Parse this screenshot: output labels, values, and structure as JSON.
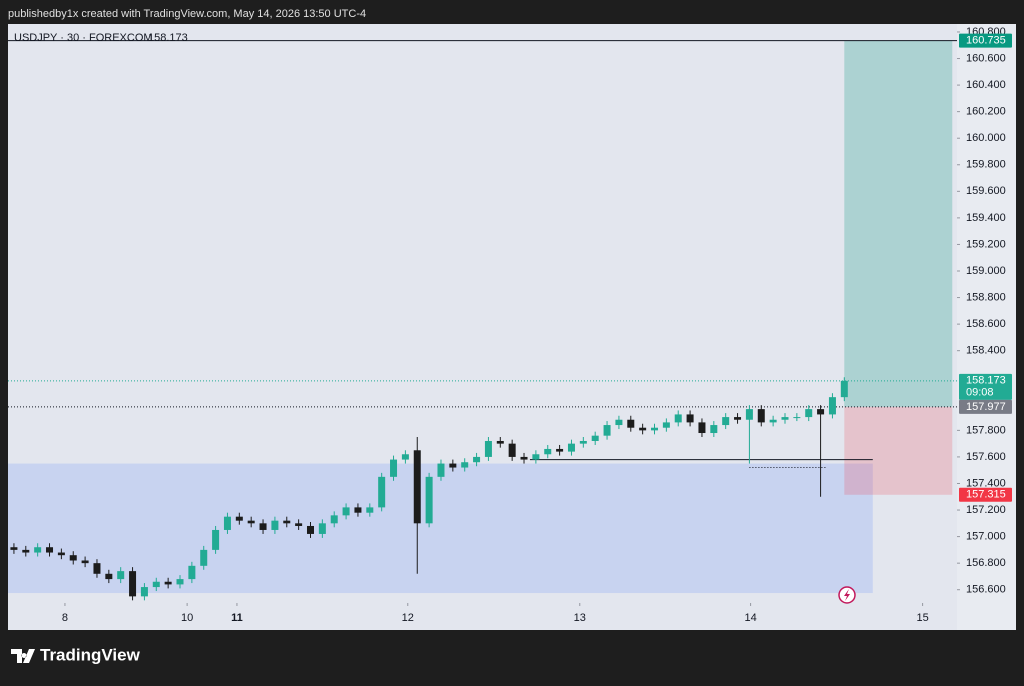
{
  "header": "publishedby1x created with TradingView.com, May 14, 2026 13:50 UTC-4",
  "footer_logo": "TradingView",
  "chart_data": {
    "type": "candlestick",
    "title": "USDJPY · 30 · FOREXCOM",
    "last_price": 158.173,
    "countdown": "09:08",
    "up_color": "#22ab94",
    "down_color": "#1c1c1c",
    "open": [
      156.92,
      156.9,
      156.88,
      156.92,
      156.88,
      156.86,
      156.82,
      156.8,
      156.72,
      156.68,
      156.74,
      156.55,
      156.62,
      156.66,
      156.64,
      156.68,
      156.78,
      156.9,
      157.05,
      157.15,
      157.12,
      157.1,
      157.05,
      157.12,
      157.1,
      157.08,
      157.02,
      157.1,
      157.16,
      157.22,
      157.18,
      157.22,
      157.45,
      157.58,
      157.65,
      157.1,
      157.45,
      157.55,
      157.52,
      157.56,
      157.6,
      157.72,
      157.7,
      157.6,
      157.58,
      157.62,
      157.66,
      157.64,
      157.7,
      157.72,
      157.76,
      157.84,
      157.88,
      157.82,
      157.8,
      157.82,
      157.86,
      157.92,
      157.86,
      157.78,
      157.84,
      157.9,
      157.88,
      157.96,
      157.86,
      157.88,
      157.9,
      157.9,
      157.96,
      157.92,
      158.05
    ],
    "high": [
      156.95,
      156.93,
      156.95,
      156.95,
      156.91,
      156.89,
      156.85,
      156.83,
      156.75,
      156.77,
      156.77,
      156.65,
      156.69,
      156.69,
      156.71,
      156.81,
      156.93,
      157.08,
      157.18,
      157.18,
      157.15,
      157.13,
      157.15,
      157.15,
      157.13,
      157.11,
      157.13,
      157.19,
      157.25,
      157.25,
      157.25,
      157.48,
      157.61,
      157.65,
      157.75,
      157.48,
      157.58,
      157.58,
      157.59,
      157.63,
      157.75,
      157.75,
      157.73,
      157.63,
      157.65,
      157.69,
      157.69,
      157.73,
      157.75,
      157.79,
      157.87,
      157.91,
      157.91,
      157.85,
      157.85,
      157.89,
      157.95,
      157.95,
      157.89,
      157.87,
      157.93,
      157.93,
      157.99,
      157.99,
      157.91,
      157.93,
      157.93,
      157.99,
      157.99,
      158.08,
      158.2
    ],
    "low": [
      156.87,
      156.85,
      156.85,
      156.85,
      156.83,
      156.79,
      156.77,
      156.69,
      156.65,
      156.65,
      156.52,
      156.52,
      156.59,
      156.61,
      156.61,
      156.65,
      156.75,
      156.87,
      157.02,
      157.09,
      157.07,
      157.02,
      157.02,
      157.07,
      157.05,
      156.99,
      156.99,
      157.07,
      157.13,
      157.15,
      157.15,
      157.19,
      157.42,
      157.55,
      156.72,
      157.07,
      157.42,
      157.49,
      157.49,
      157.53,
      157.57,
      157.67,
      157.57,
      157.55,
      157.55,
      157.59,
      157.61,
      157.61,
      157.67,
      157.69,
      157.73,
      157.81,
      157.79,
      157.77,
      157.77,
      157.79,
      157.83,
      157.83,
      157.75,
      157.75,
      157.81,
      157.85,
      157.55,
      157.83,
      157.83,
      157.85,
      157.87,
      157.87,
      157.3,
      157.89,
      158.02
    ],
    "close": [
      156.9,
      156.88,
      156.92,
      156.88,
      156.86,
      156.82,
      156.8,
      156.72,
      156.68,
      156.74,
      156.55,
      156.62,
      156.66,
      156.64,
      156.68,
      156.78,
      156.9,
      157.05,
      157.15,
      157.12,
      157.1,
      157.05,
      157.12,
      157.1,
      157.08,
      157.02,
      157.1,
      157.16,
      157.22,
      157.18,
      157.22,
      157.45,
      157.58,
      157.62,
      157.1,
      157.45,
      157.55,
      157.52,
      157.56,
      157.6,
      157.72,
      157.7,
      157.6,
      157.58,
      157.62,
      157.66,
      157.64,
      157.7,
      157.72,
      157.76,
      157.84,
      157.88,
      157.82,
      157.8,
      157.82,
      157.86,
      157.92,
      157.86,
      157.78,
      157.84,
      157.9,
      157.88,
      157.96,
      157.86,
      157.88,
      157.9,
      157.9,
      157.96,
      157.92,
      158.05,
      158.173
    ],
    "xlim": [
      0,
      80
    ],
    "xticks": [
      {
        "value": 4.8,
        "label": "8"
      },
      {
        "value": 15.1,
        "label": "10"
      },
      {
        "value": 19.3,
        "label": "11"
      },
      {
        "value": 33.7,
        "label": "12"
      },
      {
        "value": 48.2,
        "label": "13"
      },
      {
        "value": 62.6,
        "label": "14"
      },
      {
        "value": 77.1,
        "label": "15"
      }
    ],
    "ylim": [
      156.5,
      160.86
    ],
    "yticks": [
      {
        "value": 156.6,
        "label": "156.600"
      },
      {
        "value": 156.8,
        "label": "156.800"
      },
      {
        "value": 157.0,
        "label": "157.000"
      },
      {
        "value": 157.2,
        "label": "157.200"
      },
      {
        "value": 157.4,
        "label": "157.400"
      },
      {
        "value": 157.6,
        "label": "157.600"
      },
      {
        "value": 157.8,
        "label": "157.800"
      },
      {
        "value": 158.4,
        "label": "158.400"
      },
      {
        "value": 158.6,
        "label": "158.600"
      },
      {
        "value": 158.8,
        "label": "158.800"
      },
      {
        "value": 159.0,
        "label": "159.000"
      },
      {
        "value": 159.2,
        "label": "159.200"
      },
      {
        "value": 159.4,
        "label": "159.400"
      },
      {
        "value": 159.6,
        "label": "159.600"
      },
      {
        "value": 159.8,
        "label": "159.800"
      },
      {
        "value": 160.0,
        "label": "160.000"
      },
      {
        "value": 160.2,
        "label": "160.200"
      },
      {
        "value": 160.4,
        "label": "160.400"
      },
      {
        "value": 160.6,
        "label": "160.600"
      },
      {
        "value": 160.8,
        "label": "160.800"
      }
    ],
    "zone": {
      "low": 156.575,
      "high": 157.55,
      "x": [
        0,
        72.9
      ],
      "color": "#c3cff0"
    },
    "position": {
      "target": 160.735,
      "entry": 157.977,
      "stop": 157.315,
      "x": [
        70.5,
        79.6
      ],
      "target_color": "#089981",
      "entry_color": "#787b86",
      "stop_color": "#f23645"
    },
    "lines": [
      {
        "value": 157.58,
        "x": [
          44,
          72.9
        ]
      },
      {
        "value": 157.52,
        "x": [
          62.5,
          69
        ]
      }
    ]
  }
}
